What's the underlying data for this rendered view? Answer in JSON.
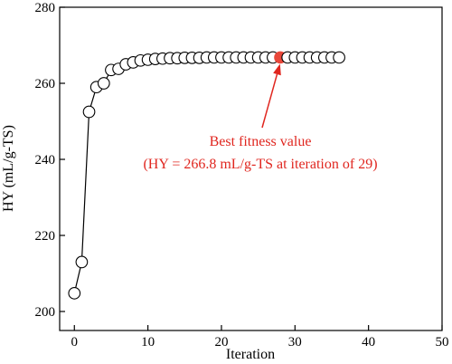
{
  "chart_data": {
    "type": "line",
    "title": "",
    "xlabel": "Iteration",
    "ylabel": "HY (mL/g-TS)",
    "xlim": [
      -2,
      50
    ],
    "ylim": [
      195,
      280
    ],
    "xticks": [
      0,
      10,
      20,
      30,
      40,
      50
    ],
    "yticks": [
      200,
      220,
      240,
      260,
      280
    ],
    "grid": false,
    "series": [
      {
        "x": [
          0,
          1,
          2,
          3,
          4,
          5,
          6,
          7,
          8,
          9,
          10,
          11,
          12,
          13,
          14,
          15,
          16,
          17,
          18,
          19,
          20,
          21,
          22,
          23,
          24,
          25,
          26,
          27,
          28,
          29,
          30,
          31,
          32,
          33,
          34,
          35,
          36
        ],
        "values": [
          204.8,
          213.0,
          252.5,
          259.0,
          260.0,
          263.5,
          263.8,
          265.0,
          265.5,
          266.0,
          266.2,
          266.4,
          266.5,
          266.6,
          266.6,
          266.7,
          266.7,
          266.7,
          266.8,
          266.8,
          266.8,
          266.8,
          266.8,
          266.8,
          266.8,
          266.8,
          266.8,
          266.8,
          266.8,
          266.8,
          266.8,
          266.8,
          266.8,
          266.8,
          266.8,
          266.8,
          266.8
        ],
        "marker": "open-circle",
        "line_color": "#000000",
        "marker_fill": "#ffffff"
      }
    ],
    "highlight": {
      "x": 28,
      "y": 266.8,
      "color": "#e8473a"
    },
    "annotation": {
      "line1": "Best fitness value",
      "line2": "(HY = 266.8 mL/g-TS at iteration of 29)",
      "color": "#e0261f"
    }
  }
}
